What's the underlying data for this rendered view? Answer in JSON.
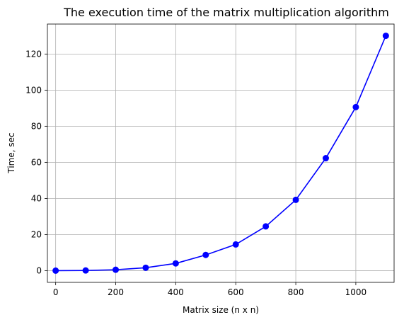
{
  "chart_data": {
    "type": "line",
    "title": "The execution time of the matrix multiplication algorithm",
    "xlabel": "Matrix size (n x n)",
    "ylabel": "Time, sec",
    "xlim": [
      -27.5,
      1127.5
    ],
    "ylim": [
      -6.5,
      136.6
    ],
    "xticks": [
      0,
      200,
      400,
      600,
      800,
      1000
    ],
    "yticks": [
      0,
      20,
      40,
      60,
      80,
      100,
      120
    ],
    "grid": true,
    "series": [
      {
        "color": "#0000ff",
        "marker": "circle",
        "x": [
          0,
          100,
          200,
          300,
          400,
          500,
          600,
          700,
          800,
          900,
          1000,
          1100
        ],
        "y": [
          0,
          0.1,
          0.5,
          1.6,
          4.0,
          8.7,
          14.5,
          24.5,
          39.2,
          62.3,
          90.6,
          130.1
        ]
      }
    ]
  }
}
